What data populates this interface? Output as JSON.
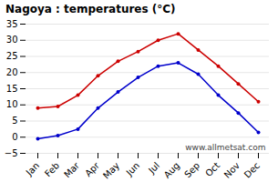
{
  "chart_data": {
    "type": "line",
    "title": "Nagoya : temperatures (°C)",
    "categories": [
      "Jan",
      "Feb",
      "Mar",
      "Apr",
      "May",
      "Jun",
      "Jul",
      "Aug",
      "Sep",
      "Oct",
      "Nov",
      "Dec"
    ],
    "series": [
      {
        "color": "#cc0000",
        "values": [
          9,
          9.5,
          13,
          19,
          23.5,
          26.5,
          30,
          32,
          27,
          22,
          16.5,
          11
        ]
      },
      {
        "color": "#0000cc",
        "values": [
          -0.5,
          0.5,
          2.5,
          9,
          14,
          18.5,
          22,
          23,
          19.5,
          13,
          7.5,
          1.5
        ]
      }
    ],
    "ylim": [
      -5,
      35
    ],
    "yticks": [
      -5,
      0,
      5,
      10,
      15,
      20,
      25,
      30,
      35
    ],
    "grid": true,
    "marker": "circle",
    "annotations": [
      "www.allmetsat.com"
    ]
  }
}
